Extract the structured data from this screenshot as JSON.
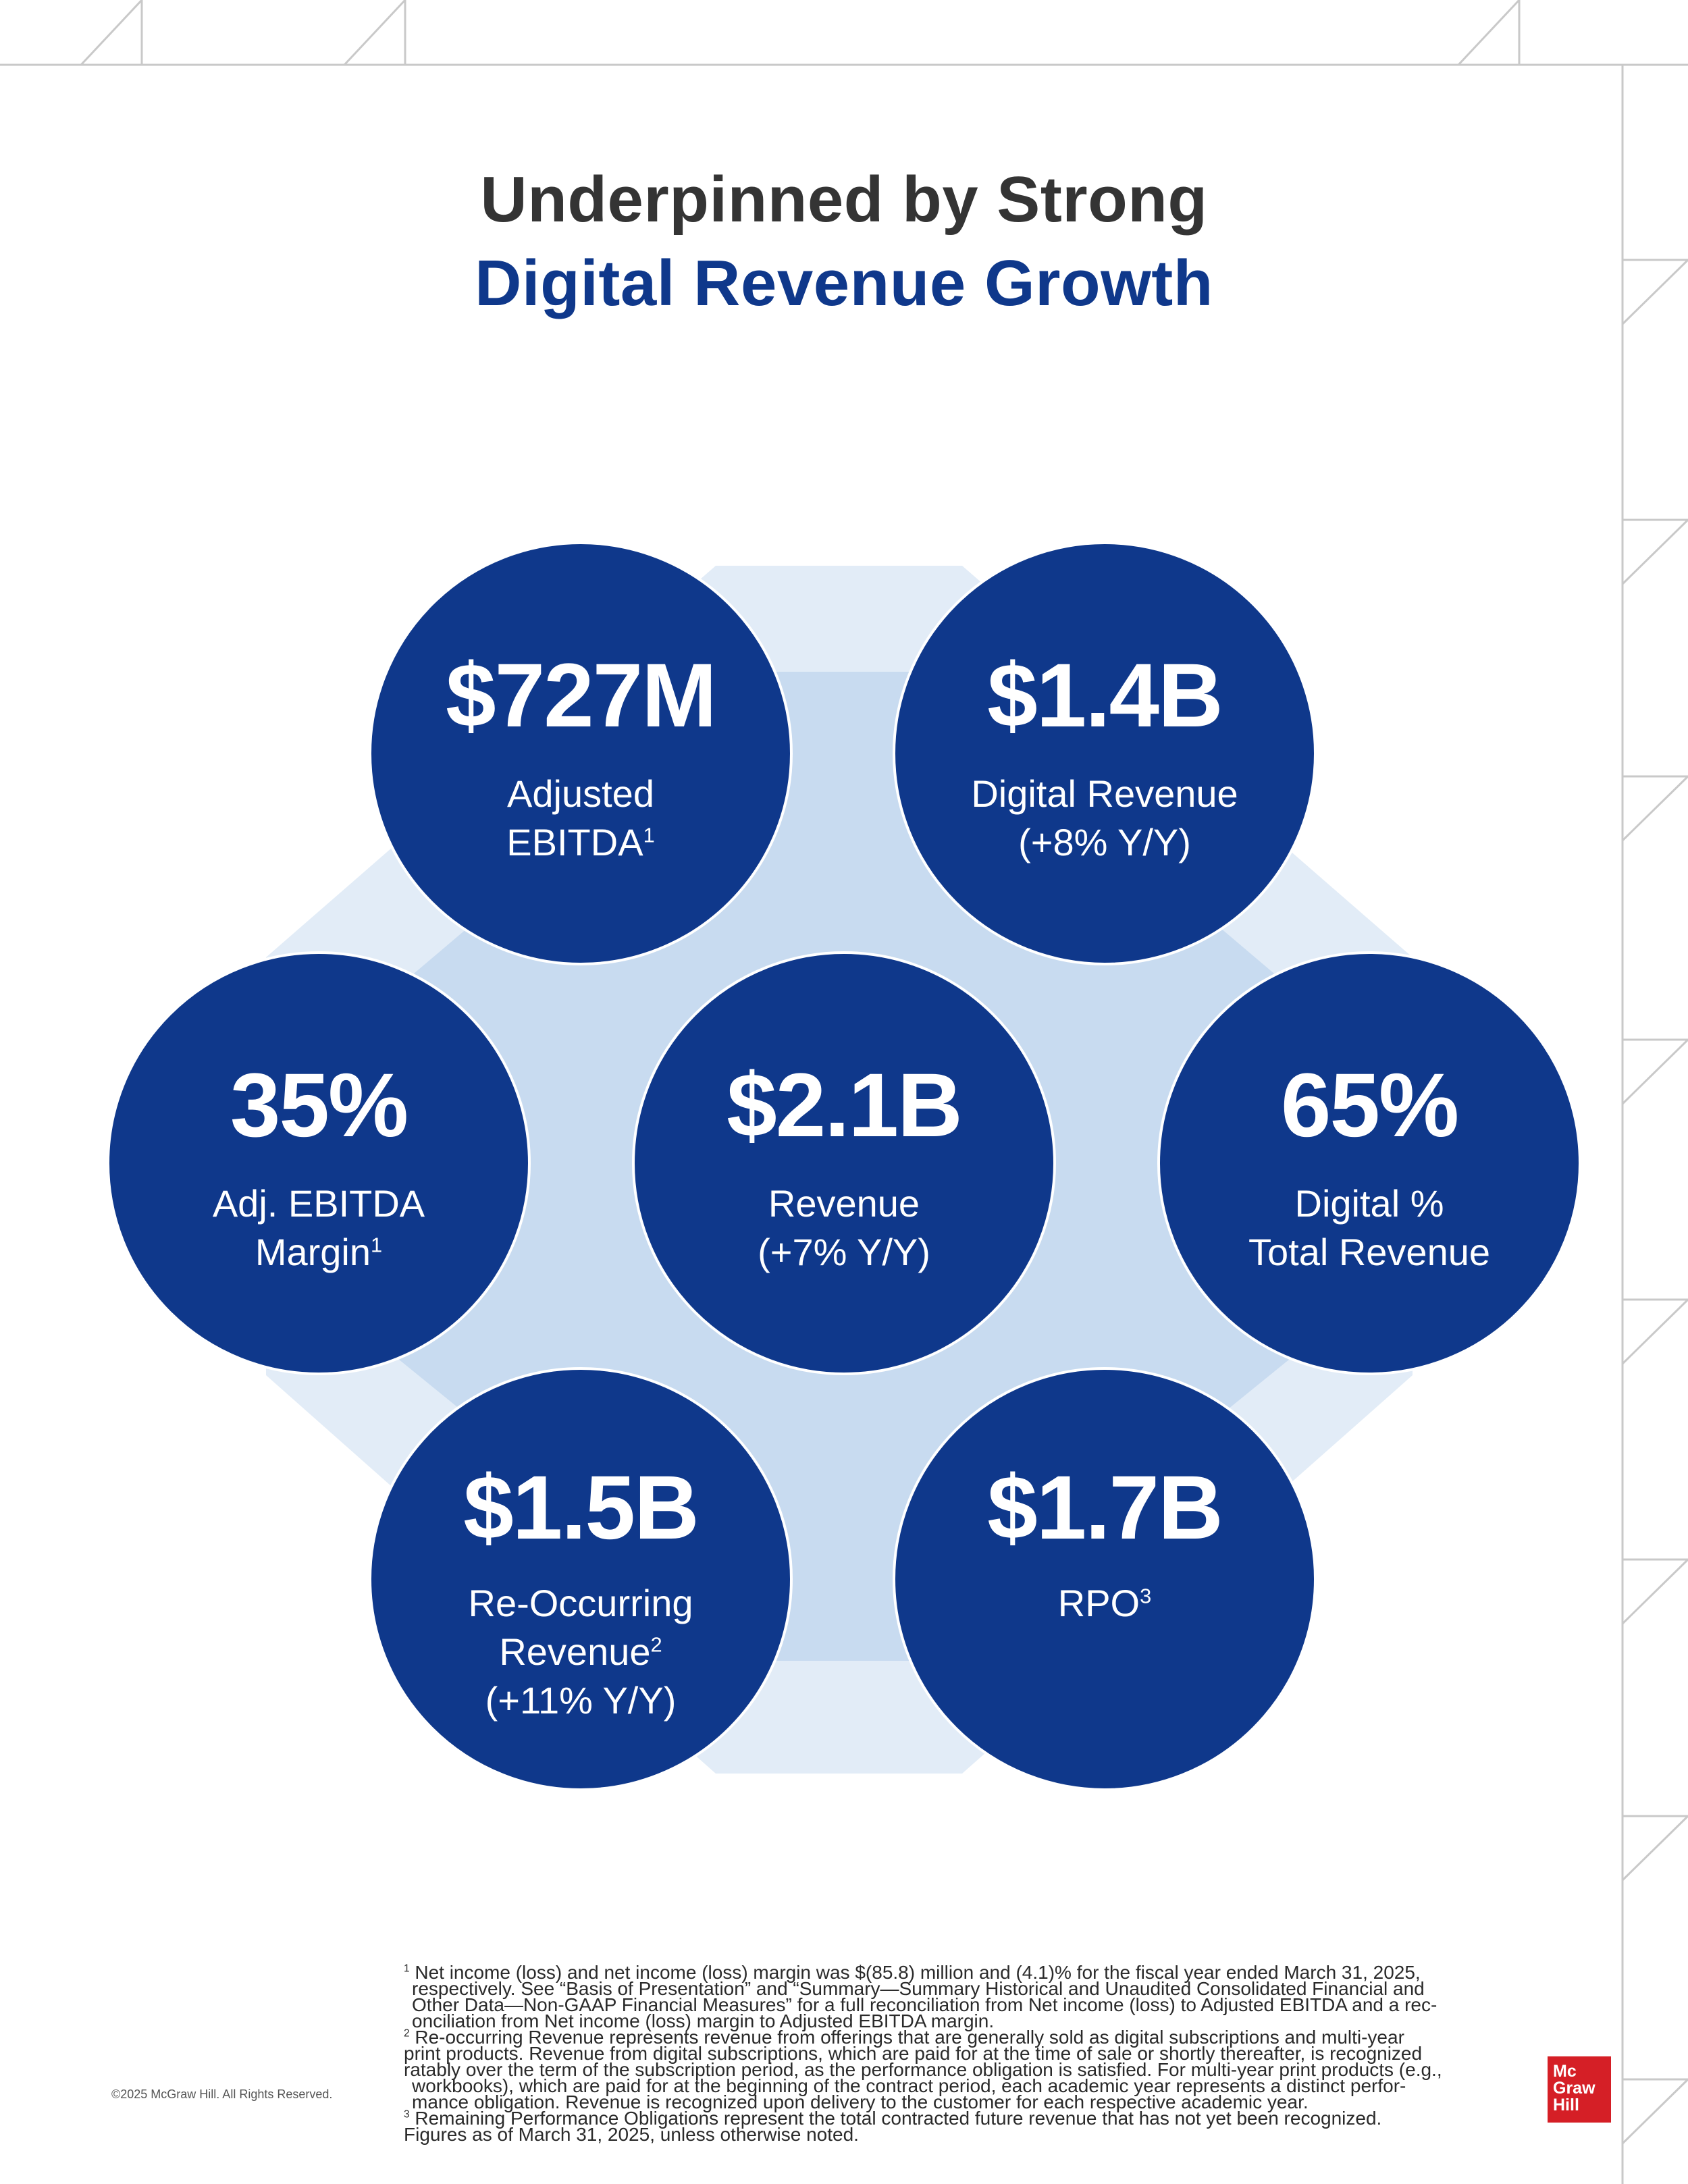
{
  "title": {
    "line1": "Underpinned by Strong",
    "line2": "Digital Revenue Growth"
  },
  "metrics": {
    "adjusted_ebitda": {
      "value": "$727M",
      "label_line1": "Adjusted",
      "label_line2": "EBITDA",
      "footnote": "1"
    },
    "digital_revenue": {
      "value": "$1.4B",
      "label_line1": "Digital Revenue",
      "label_line2": "(+8% Y/Y)"
    },
    "ebitda_margin": {
      "value": "35%",
      "label_line1": "Adj. EBITDA",
      "label_line2": "Margin",
      "footnote": "1"
    },
    "revenue": {
      "value": "$2.1B",
      "label_line1": "Revenue",
      "label_line2": "(+7% Y/Y)"
    },
    "digital_pct": {
      "value": "65%",
      "label_line1": "Digital %",
      "label_line2": "Total Revenue"
    },
    "reoccurring_revenue": {
      "value": "$1.5B",
      "label_line1": "Re-Occurring",
      "label_line2": "Revenue",
      "footnote": "2",
      "label_line3": "(+11% Y/Y)"
    },
    "rpo": {
      "value": "$1.7B",
      "label_line1": "RPO",
      "footnote": "3"
    }
  },
  "footnotes": {
    "n1_marker": "1",
    "n1_lines": [
      "Net income (loss) and net income (loss) margin was $(85.8) million and (4.1)% for the fiscal year ended March 31, 2025,",
      "respectively. See “Basis of Presentation” and “Summary—Summary Historical and Unaudited Consolidated Financial and",
      "Other Data—Non-GAAP Financial Measures” for a full reconciliation from Net income (loss) to Adjusted EBITDA and a rec-",
      "onciliation from Net income (loss) margin to Adjusted EBITDA margin."
    ],
    "n2_marker": "2",
    "n2_lines": [
      "Re-occurring Revenue represents revenue from offerings that are generally sold as digital subscriptions and multi-year",
      "print products. Revenue from digital subscriptions, which are paid for at the time of sale or shortly thereafter, is recognized",
      "ratably over the term of the subscription period, as the performance obligation is satisfied. For multi-year print products (e.g.,",
      "workbooks), which are paid for at the beginning of the contract period, each academic year represents a distinct perfor-",
      "mance obligation. Revenue is recognized upon delivery to the customer for each respective academic year."
    ],
    "n3_marker": "3",
    "n3_text": "Remaining Performance Obligations represent the total contracted future revenue that has not yet been recognized.",
    "as_of": "Figures as of March 31, 2025, unless otherwise noted."
  },
  "copyright": "©2025 McGraw Hill. All Rights Reserved.",
  "logo": {
    "line1": "Mc",
    "line2": "Graw",
    "line3": "Hill"
  },
  "colors": {
    "navy": "#0f388b",
    "title_dark": "#343434",
    "hex_outer": "#e2ecf7",
    "hex_inner": "#c8dbf0",
    "logo_red": "#d51f26"
  }
}
